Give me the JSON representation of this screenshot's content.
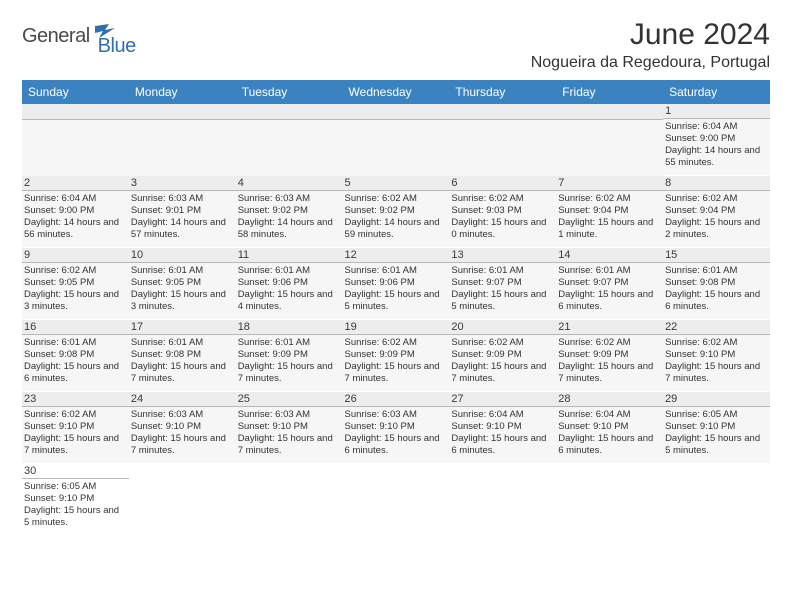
{
  "logo": {
    "part1": "General",
    "part2": "Blue"
  },
  "title": "June 2024",
  "location": "Nogueira da Regedoura, Portugal",
  "colors": {
    "header_bg": "#3b83c0",
    "header_text": "#ffffff",
    "row_border": "#2f6fb0",
    "daynum_bg": "#ededed",
    "cell_bg": "#f6f6f6",
    "logo_gray": "#4a4a4a",
    "logo_blue": "#2f6fb0"
  },
  "weekdays": [
    "Sunday",
    "Monday",
    "Tuesday",
    "Wednesday",
    "Thursday",
    "Friday",
    "Saturday"
  ],
  "weeks": [
    [
      null,
      null,
      null,
      null,
      null,
      null,
      {
        "n": "1",
        "sr": "Sunrise: 6:04 AM",
        "ss": "Sunset: 9:00 PM",
        "dl": "Daylight: 14 hours and 55 minutes."
      }
    ],
    [
      {
        "n": "2",
        "sr": "Sunrise: 6:04 AM",
        "ss": "Sunset: 9:00 PM",
        "dl": "Daylight: 14 hours and 56 minutes."
      },
      {
        "n": "3",
        "sr": "Sunrise: 6:03 AM",
        "ss": "Sunset: 9:01 PM",
        "dl": "Daylight: 14 hours and 57 minutes."
      },
      {
        "n": "4",
        "sr": "Sunrise: 6:03 AM",
        "ss": "Sunset: 9:02 PM",
        "dl": "Daylight: 14 hours and 58 minutes."
      },
      {
        "n": "5",
        "sr": "Sunrise: 6:02 AM",
        "ss": "Sunset: 9:02 PM",
        "dl": "Daylight: 14 hours and 59 minutes."
      },
      {
        "n": "6",
        "sr": "Sunrise: 6:02 AM",
        "ss": "Sunset: 9:03 PM",
        "dl": "Daylight: 15 hours and 0 minutes."
      },
      {
        "n": "7",
        "sr": "Sunrise: 6:02 AM",
        "ss": "Sunset: 9:04 PM",
        "dl": "Daylight: 15 hours and 1 minute."
      },
      {
        "n": "8",
        "sr": "Sunrise: 6:02 AM",
        "ss": "Sunset: 9:04 PM",
        "dl": "Daylight: 15 hours and 2 minutes."
      }
    ],
    [
      {
        "n": "9",
        "sr": "Sunrise: 6:02 AM",
        "ss": "Sunset: 9:05 PM",
        "dl": "Daylight: 15 hours and 3 minutes."
      },
      {
        "n": "10",
        "sr": "Sunrise: 6:01 AM",
        "ss": "Sunset: 9:05 PM",
        "dl": "Daylight: 15 hours and 3 minutes."
      },
      {
        "n": "11",
        "sr": "Sunrise: 6:01 AM",
        "ss": "Sunset: 9:06 PM",
        "dl": "Daylight: 15 hours and 4 minutes."
      },
      {
        "n": "12",
        "sr": "Sunrise: 6:01 AM",
        "ss": "Sunset: 9:06 PM",
        "dl": "Daylight: 15 hours and 5 minutes."
      },
      {
        "n": "13",
        "sr": "Sunrise: 6:01 AM",
        "ss": "Sunset: 9:07 PM",
        "dl": "Daylight: 15 hours and 5 minutes."
      },
      {
        "n": "14",
        "sr": "Sunrise: 6:01 AM",
        "ss": "Sunset: 9:07 PM",
        "dl": "Daylight: 15 hours and 6 minutes."
      },
      {
        "n": "15",
        "sr": "Sunrise: 6:01 AM",
        "ss": "Sunset: 9:08 PM",
        "dl": "Daylight: 15 hours and 6 minutes."
      }
    ],
    [
      {
        "n": "16",
        "sr": "Sunrise: 6:01 AM",
        "ss": "Sunset: 9:08 PM",
        "dl": "Daylight: 15 hours and 6 minutes."
      },
      {
        "n": "17",
        "sr": "Sunrise: 6:01 AM",
        "ss": "Sunset: 9:08 PM",
        "dl": "Daylight: 15 hours and 7 minutes."
      },
      {
        "n": "18",
        "sr": "Sunrise: 6:01 AM",
        "ss": "Sunset: 9:09 PM",
        "dl": "Daylight: 15 hours and 7 minutes."
      },
      {
        "n": "19",
        "sr": "Sunrise: 6:02 AM",
        "ss": "Sunset: 9:09 PM",
        "dl": "Daylight: 15 hours and 7 minutes."
      },
      {
        "n": "20",
        "sr": "Sunrise: 6:02 AM",
        "ss": "Sunset: 9:09 PM",
        "dl": "Daylight: 15 hours and 7 minutes."
      },
      {
        "n": "21",
        "sr": "Sunrise: 6:02 AM",
        "ss": "Sunset: 9:09 PM",
        "dl": "Daylight: 15 hours and 7 minutes."
      },
      {
        "n": "22",
        "sr": "Sunrise: 6:02 AM",
        "ss": "Sunset: 9:10 PM",
        "dl": "Daylight: 15 hours and 7 minutes."
      }
    ],
    [
      {
        "n": "23",
        "sr": "Sunrise: 6:02 AM",
        "ss": "Sunset: 9:10 PM",
        "dl": "Daylight: 15 hours and 7 minutes."
      },
      {
        "n": "24",
        "sr": "Sunrise: 6:03 AM",
        "ss": "Sunset: 9:10 PM",
        "dl": "Daylight: 15 hours and 7 minutes."
      },
      {
        "n": "25",
        "sr": "Sunrise: 6:03 AM",
        "ss": "Sunset: 9:10 PM",
        "dl": "Daylight: 15 hours and 7 minutes."
      },
      {
        "n": "26",
        "sr": "Sunrise: 6:03 AM",
        "ss": "Sunset: 9:10 PM",
        "dl": "Daylight: 15 hours and 6 minutes."
      },
      {
        "n": "27",
        "sr": "Sunrise: 6:04 AM",
        "ss": "Sunset: 9:10 PM",
        "dl": "Daylight: 15 hours and 6 minutes."
      },
      {
        "n": "28",
        "sr": "Sunrise: 6:04 AM",
        "ss": "Sunset: 9:10 PM",
        "dl": "Daylight: 15 hours and 6 minutes."
      },
      {
        "n": "29",
        "sr": "Sunrise: 6:05 AM",
        "ss": "Sunset: 9:10 PM",
        "dl": "Daylight: 15 hours and 5 minutes."
      }
    ],
    [
      {
        "n": "30",
        "sr": "Sunrise: 6:05 AM",
        "ss": "Sunset: 9:10 PM",
        "dl": "Daylight: 15 hours and 5 minutes."
      },
      null,
      null,
      null,
      null,
      null,
      null
    ]
  ]
}
